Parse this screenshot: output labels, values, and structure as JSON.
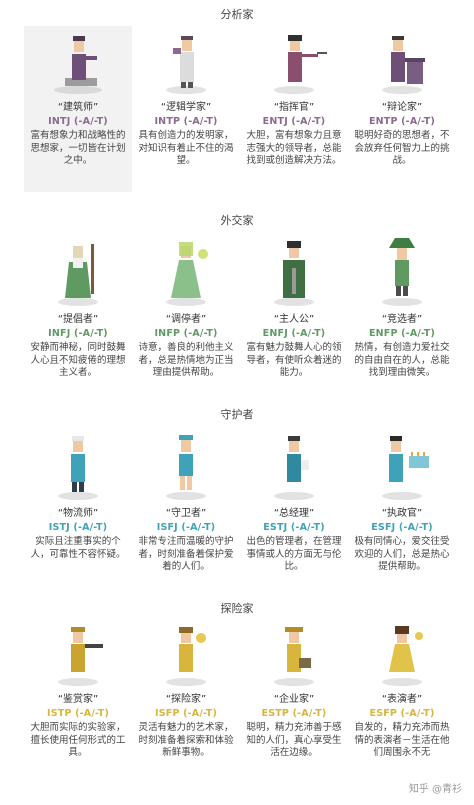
{
  "groups": [
    {
      "title": "分析家",
      "color": "#8a6a8f",
      "cards": [
        {
          "role": "“建筑师”",
          "code": "INTJ (-A/-T)",
          "desc": "富有想象力和战略性的思想家，一切皆在计划之中。",
          "icon": "architect-avatar"
        },
        {
          "role": "“逻辑学家”",
          "code": "INTP (-A/-T)",
          "desc": "具有创造力的发明家，对知识有着止不住的渴望。",
          "icon": "logician-avatar"
        },
        {
          "role": "“指挥官”",
          "code": "ENTJ (-A/-T)",
          "desc": "大胆，富有想象力且意志强大的领导者，总能找到或创造解决方法。",
          "icon": "commander-avatar"
        },
        {
          "role": "“辩论家”",
          "code": "ENTP (-A/-T)",
          "desc": "聪明好奇的思想者，不会放弃任何智力上的挑战。",
          "icon": "debater-avatar"
        }
      ]
    },
    {
      "title": "外交家",
      "color": "#5f9a63",
      "cards": [
        {
          "role": "“提倡者”",
          "code": "INFJ (-A/-T)",
          "desc": "安静而神秘，同时鼓舞人心且不知疲倦的理想主义者。",
          "icon": "advocate-avatar"
        },
        {
          "role": "“调停者”",
          "code": "INFP (-A/-T)",
          "desc": "诗意，善良的利他主义者，总是热情地为正当理由提供帮助。",
          "icon": "mediator-avatar"
        },
        {
          "role": "“主人公”",
          "code": "ENFJ (-A/-T)",
          "desc": "富有魅力鼓舞人心的领导者，有使听众着迷的能力。",
          "icon": "protagonist-avatar"
        },
        {
          "role": "“竞选者”",
          "code": "ENFP (-A/-T)",
          "desc": "热情，有创造力爱社交的自由自在的人，总能找到理由微笑。",
          "icon": "campaigner-avatar"
        }
      ]
    },
    {
      "title": "守护者",
      "color": "#3ea2b8",
      "cards": [
        {
          "role": "“物流师”",
          "code": "ISTJ (-A/-T)",
          "desc": "实际且注重事实的个人，可靠性不容怀疑。",
          "icon": "logistician-avatar"
        },
        {
          "role": "“守卫者”",
          "code": "ISFJ (-A/-T)",
          "desc": "非常专注而温暖的守护者，时刻准备着保护爱着的人们。",
          "icon": "defender-avatar"
        },
        {
          "role": "“总经理”",
          "code": "ESTJ (-A/-T)",
          "desc": "出色的管理者，在管理事情或人的方面无与伦比。",
          "icon": "executive-avatar"
        },
        {
          "role": "“执政官”",
          "code": "ESFJ (-A/-T)",
          "desc": "极有同情心，爱交往受欢迎的人们，总是热心提供帮助。",
          "icon": "consul-avatar"
        }
      ]
    },
    {
      "title": "探险家",
      "color": "#d8b53c",
      "cards": [
        {
          "role": "“鉴赏家”",
          "code": "ISTP (-A/-T)",
          "desc": "大胆而实际的实验家，擅长使用任何形式的工具。",
          "icon": "virtuoso-avatar"
        },
        {
          "role": "“探险家”",
          "code": "ISFP (-A/-T)",
          "desc": "灵活有魅力的艺术家，时刻准备着探索和体验新鲜事物。",
          "icon": "adventurer-avatar"
        },
        {
          "role": "“企业家”",
          "code": "ESTP (-A/-T)",
          "desc": "聪明，精力充沛善于感知的人们，真心享受生活在边缘。",
          "icon": "entrepreneur-avatar"
        },
        {
          "role": "“表演者”",
          "code": "ESFP (-A/-T)",
          "desc": "自发的，精力充沛而热情的表演者－生活在他们周围永不无",
          "icon": "entertainer-avatar"
        }
      ]
    }
  ],
  "watermark": "知乎 @青衫"
}
